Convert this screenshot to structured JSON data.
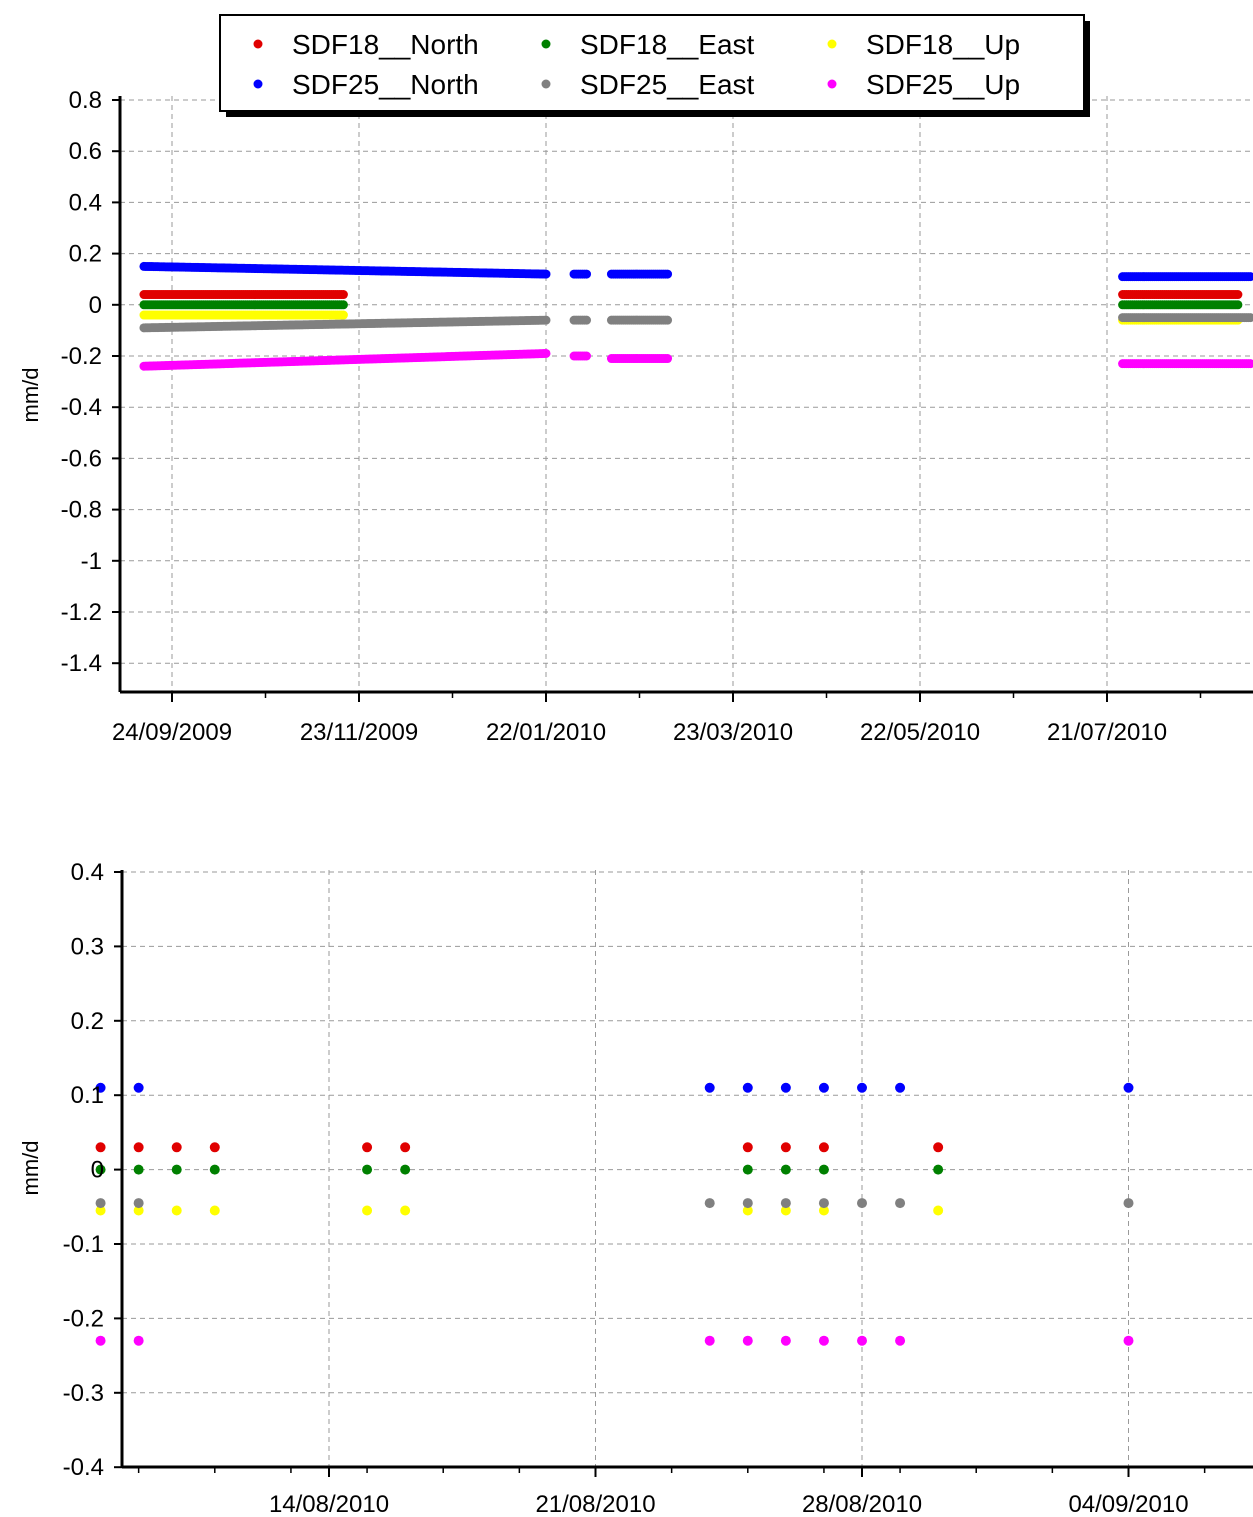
{
  "chart_data": [
    {
      "type": "scatter",
      "ylabel": "mm/d",
      "ylim": [
        -1.5,
        0.8
      ],
      "yticks": [
        "0.8",
        "0.6",
        "0.4",
        "0.2",
        "0",
        "-0.2",
        "-0.4",
        "-0.6",
        "-0.8",
        "-1",
        "-1.2",
        "-1.4"
      ],
      "xticks": [
        "24/09/2009",
        "23/11/2009",
        "22/01/2010",
        "23/03/2010",
        "22/05/2010",
        "21/07/2010"
      ],
      "grid": true,
      "legend": "top-center",
      "series": [
        {
          "name": "SDF18__North",
          "color": "#e00000",
          "segments": [
            {
              "from": "15/09/2009",
              "to": "18/11/2009",
              "y": [
                0.04,
                0.04
              ]
            },
            {
              "from": "26/07/2010",
              "to": "01/09/2010",
              "y": [
                0.04,
                0.04
              ]
            }
          ]
        },
        {
          "name": "SDF18__East",
          "color": "#008000",
          "segments": [
            {
              "from": "15/09/2009",
              "to": "18/11/2009",
              "y": [
                0.0,
                0.0
              ]
            },
            {
              "from": "26/07/2010",
              "to": "01/09/2010",
              "y": [
                0.0,
                0.0
              ]
            }
          ]
        },
        {
          "name": "SDF18__Up",
          "color": "#ffff00",
          "segments": [
            {
              "from": "15/09/2009",
              "to": "18/11/2009",
              "y": [
                -0.04,
                -0.04
              ]
            },
            {
              "from": "26/07/2010",
              "to": "01/09/2010",
              "y": [
                -0.06,
                -0.06
              ]
            }
          ]
        },
        {
          "name": "SDF25__North",
          "color": "#0000ff",
          "segments": [
            {
              "from": "15/09/2009",
              "to": "22/01/2010",
              "y": [
                0.15,
                0.12
              ]
            },
            {
              "from": "31/01/2010",
              "to": "04/02/2010",
              "y": [
                0.12,
                0.12
              ]
            },
            {
              "from": "12/02/2010",
              "to": "02/03/2010",
              "y": [
                0.12,
                0.12
              ]
            },
            {
              "from": "26/07/2010",
              "to": "05/09/2010",
              "y": [
                0.11,
                0.11
              ]
            }
          ]
        },
        {
          "name": "SDF25__East",
          "color": "#808080",
          "segments": [
            {
              "from": "15/09/2009",
              "to": "22/01/2010",
              "y": [
                -0.09,
                -0.06
              ]
            },
            {
              "from": "31/01/2010",
              "to": "04/02/2010",
              "y": [
                -0.06,
                -0.06
              ]
            },
            {
              "from": "12/02/2010",
              "to": "02/03/2010",
              "y": [
                -0.06,
                -0.06
              ]
            },
            {
              "from": "26/07/2010",
              "to": "05/09/2010",
              "y": [
                -0.05,
                -0.05
              ]
            }
          ]
        },
        {
          "name": "SDF25__Up",
          "color": "#ff00ff",
          "segments": [
            {
              "from": "15/09/2009",
              "to": "22/01/2010",
              "y": [
                -0.24,
                -0.19
              ]
            },
            {
              "from": "31/01/2010",
              "to": "04/02/2010",
              "y": [
                -0.2,
                -0.2
              ]
            },
            {
              "from": "12/02/2010",
              "to": "02/03/2010",
              "y": [
                -0.21,
                -0.21
              ]
            },
            {
              "from": "26/07/2010",
              "to": "05/09/2010",
              "y": [
                -0.23,
                -0.23
              ]
            }
          ]
        }
      ]
    },
    {
      "type": "scatter",
      "ylabel": "mm/d",
      "ylim": [
        -0.4,
        0.4
      ],
      "yticks": [
        "0.4",
        "0.3",
        "0.2",
        "0.1",
        "0",
        "-0.1",
        "-0.2",
        "-0.3",
        "-0.4"
      ],
      "xticks": [
        "14/08/2010",
        "21/08/2010",
        "28/08/2010",
        "04/09/2010"
      ],
      "grid": true,
      "series": [
        {
          "name": "SDF18__North",
          "color": "#e00000",
          "y": 0.03,
          "x": [
            "08/08/2010",
            "09/08/2010",
            "10/08/2010",
            "11/08/2010",
            "15/08/2010",
            "16/08/2010",
            "25/08/2010",
            "26/08/2010",
            "27/08/2010",
            "30/08/2010"
          ]
        },
        {
          "name": "SDF18__East",
          "color": "#008000",
          "y": 0.0,
          "x": [
            "08/08/2010",
            "09/08/2010",
            "10/08/2010",
            "11/08/2010",
            "15/08/2010",
            "16/08/2010",
            "25/08/2010",
            "26/08/2010",
            "27/08/2010",
            "30/08/2010"
          ]
        },
        {
          "name": "SDF18__Up",
          "color": "#ffff00",
          "y": -0.055,
          "x": [
            "08/08/2010",
            "09/08/2010",
            "10/08/2010",
            "11/08/2010",
            "15/08/2010",
            "16/08/2010",
            "25/08/2010",
            "26/08/2010",
            "27/08/2010",
            "30/08/2010"
          ]
        },
        {
          "name": "SDF25__North",
          "color": "#0000ff",
          "y": 0.11,
          "x": [
            "08/08/2010",
            "09/08/2010",
            "24/08/2010",
            "25/08/2010",
            "26/08/2010",
            "27/08/2010",
            "28/08/2010",
            "29/08/2010",
            "04/09/2010"
          ]
        },
        {
          "name": "SDF25__East",
          "color": "#808080",
          "y": -0.045,
          "x": [
            "08/08/2010",
            "09/08/2010",
            "24/08/2010",
            "25/08/2010",
            "26/08/2010",
            "27/08/2010",
            "28/08/2010",
            "29/08/2010",
            "04/09/2010"
          ]
        },
        {
          "name": "SDF25__Up",
          "color": "#ff00ff",
          "y": -0.23,
          "x": [
            "08/08/2010",
            "09/08/2010",
            "24/08/2010",
            "25/08/2010",
            "26/08/2010",
            "27/08/2010",
            "28/08/2010",
            "29/08/2010",
            "04/09/2010"
          ]
        }
      ]
    }
  ]
}
